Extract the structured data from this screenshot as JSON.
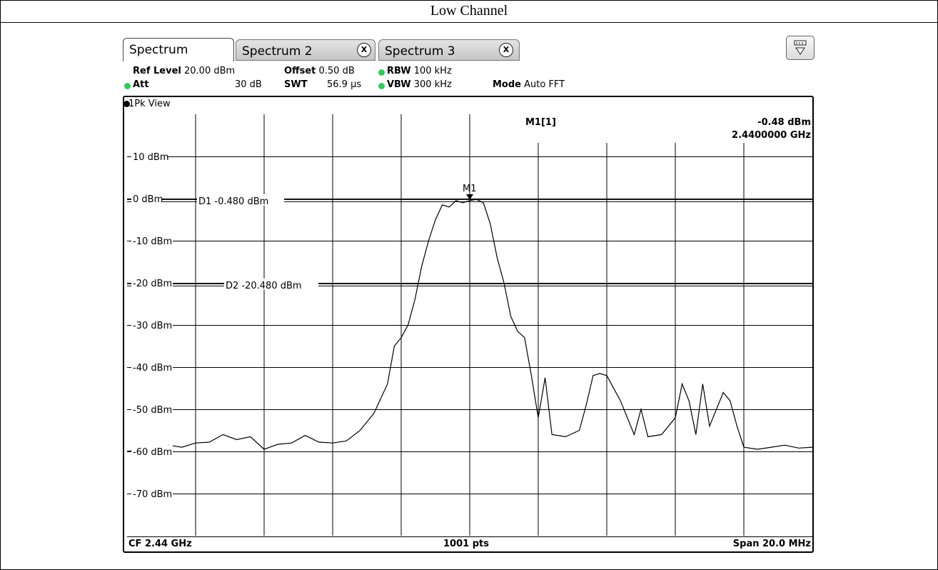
{
  "caption": "Low Channel",
  "tabs": [
    {
      "label": "Spectrum",
      "active": true
    },
    {
      "label": "Spectrum 2",
      "close": "X"
    },
    {
      "label": "Spectrum 3",
      "close": "X"
    }
  ],
  "settings": {
    "ref_level_label": "Ref Level",
    "ref_level_value": "20.00 dBm",
    "offset_label": "Offset",
    "offset_value": "0.50 dB",
    "rbw_label": "RBW",
    "rbw_value": "100 kHz",
    "att_label": "Att",
    "att_value": "30 dB",
    "swt_label": "SWT",
    "swt_value": "56.9 µs",
    "vbw_label": "VBW",
    "vbw_value": "300 kHz",
    "mode_label": "Mode",
    "mode_value": "Auto FFT"
  },
  "view_label": "1Pk View",
  "marker": {
    "name": "M1",
    "readout_label": "M1[1]",
    "level": "-0.48 dBm",
    "frequency": "2.4400000 GHz"
  },
  "display_lines": [
    {
      "label": "D1",
      "value": "-0.480 dBm",
      "level": -0.48
    },
    {
      "label": "D2",
      "value": "-20.480 dBm",
      "level": -20.48
    }
  ],
  "footer": {
    "cf": "CF 2.44 GHz",
    "points": "1001 pts",
    "span": "Span 20.0 MHz"
  },
  "colors": {
    "status_led": "#35c85a",
    "trace": "#000000",
    "grid": "#000000"
  },
  "chart_data": {
    "type": "line",
    "ylabel_unit": "dBm",
    "y_ticks": [
      "10 dBm",
      "0 dBm",
      "-10 dBm",
      "-20 dBm",
      "-30 dBm",
      "-40 dBm",
      "-50 dBm",
      "-60 dBm",
      "-70 dBm"
    ],
    "y_tick_values": [
      10,
      0,
      -10,
      -20,
      -30,
      -40,
      -50,
      -60,
      -70
    ],
    "ylim": [
      -80,
      20
    ],
    "xlim_mhz": [
      2430,
      2450
    ],
    "grid": true,
    "series": [
      {
        "x": [
          2430.0,
          2430.4,
          2430.8,
          2431.2,
          2431.6,
          2432.0,
          2432.4,
          2432.8,
          2433.2,
          2433.6,
          2434.0,
          2434.4,
          2434.8,
          2435.2,
          2435.6,
          2436.0,
          2436.4,
          2436.8,
          2437.2,
          2437.6,
          2437.8,
          2438.0,
          2438.2,
          2438.4,
          2438.6,
          2438.8,
          2439.0,
          2439.2,
          2439.4,
          2439.6,
          2439.8,
          2440.0,
          2440.2,
          2440.4,
          2440.6,
          2440.8,
          2441.0,
          2441.2,
          2441.4,
          2441.6,
          2441.8,
          2442.0,
          2442.2,
          2442.4,
          2442.8,
          2443.2,
          2443.4,
          2443.6,
          2443.8,
          2444.0,
          2444.4,
          2444.8,
          2445.0,
          2445.2,
          2445.6,
          2446.0,
          2446.2,
          2446.4,
          2446.6,
          2446.8,
          2447.0,
          2447.2,
          2447.4,
          2447.6,
          2447.8,
          2448.0,
          2448.4,
          2448.8,
          2449.2,
          2449.6,
          2450.0
        ],
        "values": [
          -60.0,
          -59.5,
          -60.5,
          -58.5,
          -59.0,
          -58.0,
          -57.8,
          -56.0,
          -57.2,
          -56.5,
          -59.5,
          -58.3,
          -58.0,
          -56.2,
          -57.8,
          -58.0,
          -57.5,
          -55.0,
          -51.0,
          -44.0,
          -35.0,
          -33.0,
          -30.0,
          -24.0,
          -16.0,
          -10.0,
          -5.0,
          -1.5,
          -2.0,
          -0.5,
          -1.0,
          -0.48,
          -0.2,
          -1.0,
          -6.0,
          -14.0,
          -20.0,
          -28.0,
          -31.5,
          -33.0,
          -42.0,
          -52.0,
          -42.5,
          -56.0,
          -56.5,
          -55.0,
          -49.0,
          -42.0,
          -41.5,
          -42.0,
          -48.0,
          -56.0,
          -50.0,
          -56.5,
          -56.0,
          -52.0,
          -44.0,
          -48.0,
          -56.0,
          -44.0,
          -54.0,
          -50.0,
          -46.0,
          -48.0,
          -54.0,
          -59.0,
          -59.5,
          -59.0,
          -58.5,
          -59.2,
          -59.0
        ]
      }
    ]
  }
}
